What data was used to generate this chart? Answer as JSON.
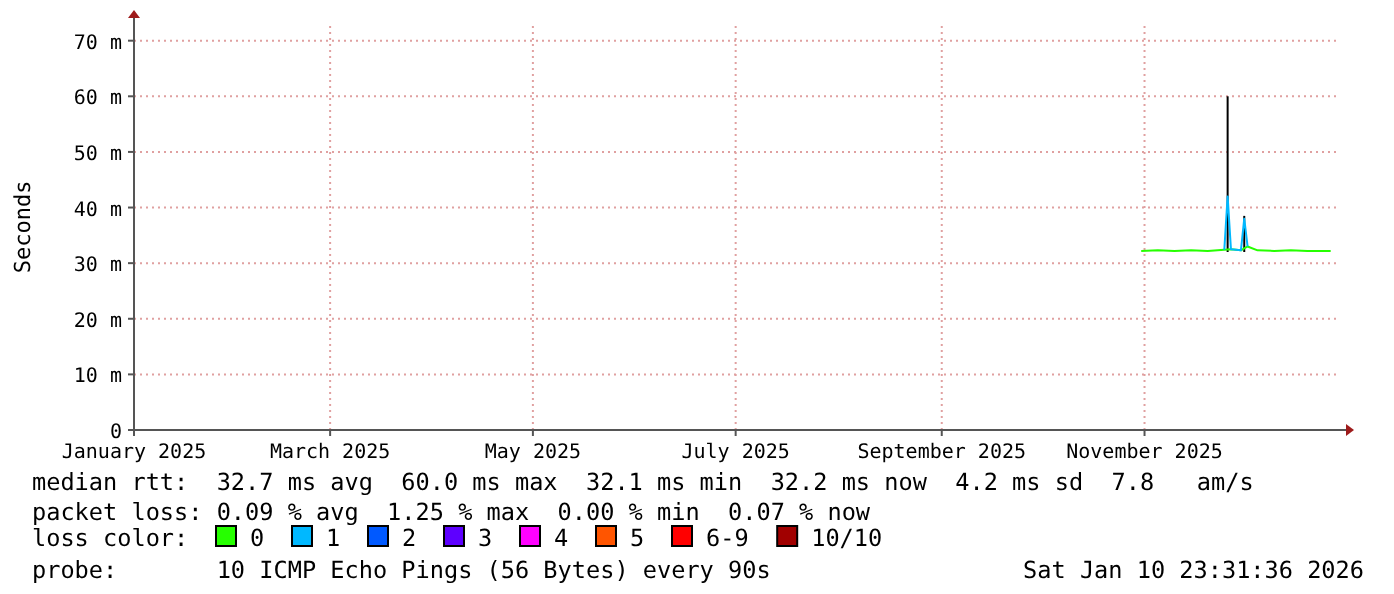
{
  "chart_data": {
    "type": "line",
    "ylabel": "Seconds",
    "legend_title": "loss color:",
    "legend": "bottom",
    "grid": true,
    "xlim": [
      "2025-01-01",
      "2025-12-28"
    ],
    "xticks": [
      {
        "value": "2025-01-01",
        "label": "January 2025"
      },
      {
        "value": "2025-03-01",
        "label": "March 2025"
      },
      {
        "value": "2025-05-01",
        "label": "May 2025"
      },
      {
        "value": "2025-07-01",
        "label": "July 2025"
      },
      {
        "value": "2025-09-01",
        "label": "September 2025"
      },
      {
        "value": "2025-11-01",
        "label": "November 2025"
      }
    ],
    "ylim": [
      0,
      73
    ],
    "yticks": [
      {
        "value": 0,
        "label": "0"
      },
      {
        "value": 10,
        "label": "10 m"
      },
      {
        "value": 20,
        "label": "20 m"
      },
      {
        "value": 30,
        "label": "30 m"
      },
      {
        "value": 40,
        "label": "40 m"
      },
      {
        "value": 50,
        "label": "50 m"
      },
      {
        "value": 60,
        "label": "60 m"
      },
      {
        "value": 70,
        "label": "70 m"
      }
    ],
    "series": [
      {
        "color": "#000000",
        "x": [
          "2025-11-26",
          "2025-11-26"
        ],
        "values": [
          32,
          60
        ]
      },
      {
        "color": "#000000",
        "x": [
          "2025-12-01",
          "2025-12-01"
        ],
        "values": [
          32,
          38.5
        ]
      },
      {
        "name": "0",
        "color": "#26ff00",
        "x": [
          "2025-10-31",
          "2025-11-05",
          "2025-11-10",
          "2025-11-15",
          "2025-11-20",
          "2025-11-25",
          "2025-11-27",
          "2025-11-30",
          "2025-12-02",
          "2025-12-05",
          "2025-12-10",
          "2025-12-15",
          "2025-12-20",
          "2025-12-27"
        ],
        "values": [
          32.2,
          32.3,
          32.2,
          32.3,
          32.2,
          32.4,
          32.5,
          32.3,
          33,
          32.3,
          32.2,
          32.3,
          32.2,
          32.2
        ]
      },
      {
        "name": "1",
        "color": "#00b8ff",
        "x": [
          "2025-11-25",
          "2025-11-26",
          "2025-11-27",
          "2025-11-30",
          "2025-12-01",
          "2025-12-02"
        ],
        "values": [
          32.4,
          42,
          32.5,
          32.3,
          38,
          33
        ]
      },
      {
        "name": "2",
        "color": "#0059ff"
      },
      {
        "name": "3",
        "color": "#5e00ff"
      },
      {
        "name": "4",
        "color": "#ff00ff"
      },
      {
        "name": "5",
        "color": "#ff5500"
      },
      {
        "name": "6-9",
        "color": "#ff0000"
      },
      {
        "name": "10/10",
        "color": "#a10000"
      }
    ],
    "annotations": [
      "median rtt:  32.7 ms avg  60.0 ms max  32.1 ms min  32.2 ms now  4.2 ms sd  7.8   am/s",
      "packet loss: 0.09 % avg  1.25 % max  0.00 % min  0.07 % now",
      "probe:       10 ICMP Echo Pings (56 Bytes) every 90s",
      "Sat Jan 10 23:31:36 2026"
    ]
  }
}
